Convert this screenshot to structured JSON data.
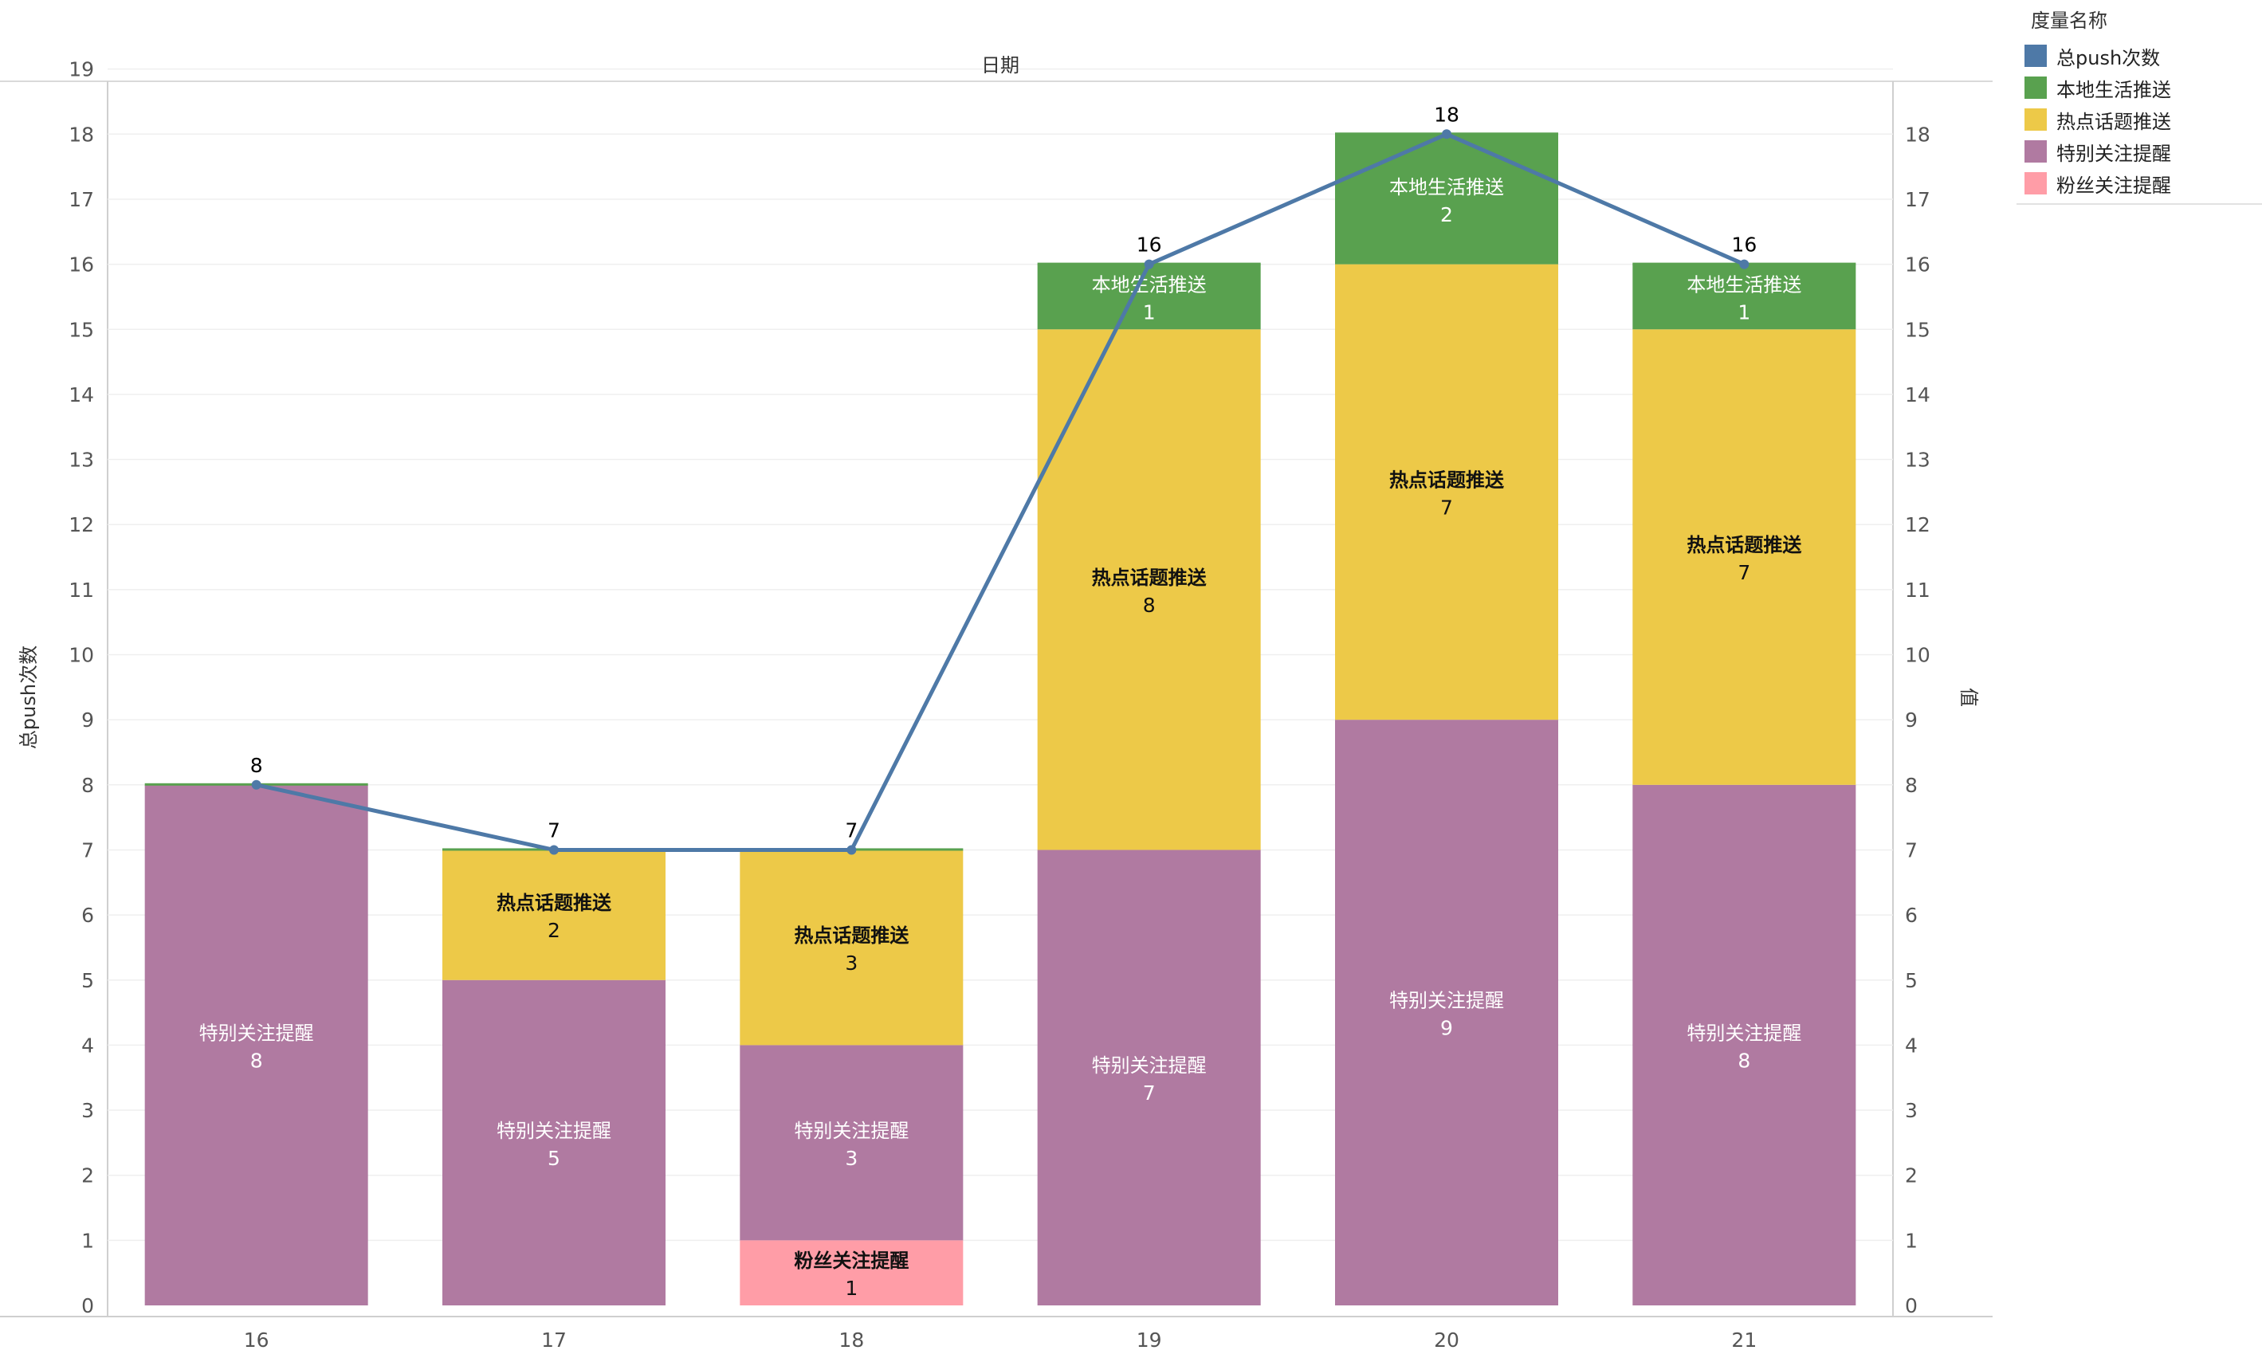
{
  "chart_data": {
    "type": "bar",
    "xlabel": "日期",
    "ylabel": "总push次数",
    "ylabel_right": "值",
    "categories": [
      "16",
      "17",
      "18",
      "19",
      "20",
      "21"
    ],
    "ylim": [
      0,
      19
    ],
    "yticks_left": [
      0,
      1,
      2,
      3,
      4,
      5,
      6,
      7,
      8,
      9,
      10,
      11,
      12,
      13,
      14,
      15,
      16,
      17,
      18,
      19
    ],
    "yticks_right": [
      0,
      1,
      2,
      3,
      4,
      5,
      6,
      7,
      8,
      9,
      10,
      11,
      12,
      13,
      14,
      15,
      16,
      17,
      18
    ],
    "stack_order": [
      "粉丝关注提醒",
      "特别关注提醒",
      "热点话题推送",
      "本地生活推送"
    ],
    "series": [
      {
        "name": "总push次数",
        "type": "line",
        "color": "#4e79a7",
        "values": [
          8,
          7,
          7,
          16,
          18,
          16
        ]
      },
      {
        "name": "本地生活推送",
        "type": "bar",
        "color": "#59a14f",
        "values": [
          0,
          0,
          0,
          1,
          2,
          1
        ]
      },
      {
        "name": "热点话题推送",
        "type": "bar",
        "color": "#edc948",
        "values": [
          0,
          2,
          3,
          8,
          7,
          7
        ]
      },
      {
        "name": "特别关注提醒",
        "type": "bar",
        "color": "#b07aa1",
        "values": [
          8,
          5,
          3,
          7,
          9,
          8
        ]
      },
      {
        "name": "粉丝关注提醒",
        "type": "bar",
        "color": "#ff9da7",
        "values": [
          0,
          0,
          1,
          0,
          0,
          0
        ]
      }
    ],
    "grid": true,
    "legend_position": "top-right",
    "legend_title": "度量名称"
  }
}
